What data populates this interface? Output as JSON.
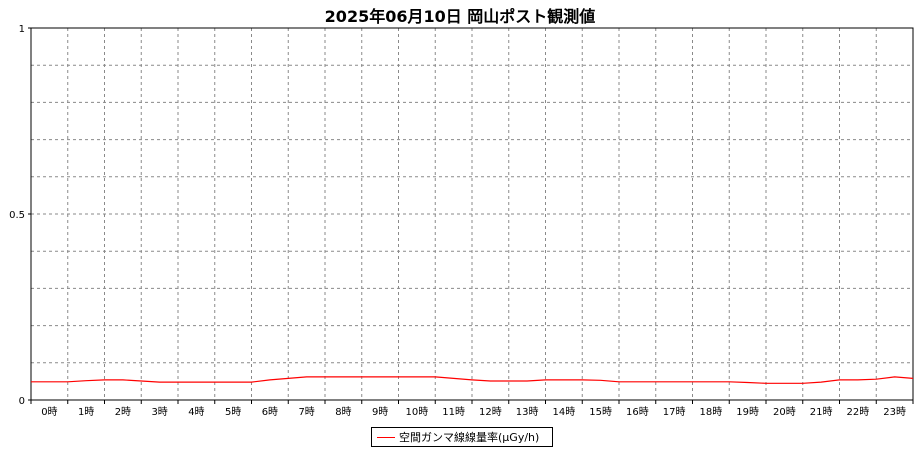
{
  "chart_data": {
    "type": "line",
    "title": "2025年06月10日 岡山ポスト観測値",
    "xlabel": "",
    "ylabel": "",
    "ylim": [
      0,
      1
    ],
    "y_tick_labels": [
      "0",
      "0.5",
      "1"
    ],
    "y_ticks": [
      0,
      0.5,
      1
    ],
    "x_tick_labels": [
      "0時",
      "1時",
      "2時",
      "3時",
      "4時",
      "5時",
      "6時",
      "7時",
      "8時",
      "9時",
      "10時",
      "11時",
      "12時",
      "13時",
      "14時",
      "15時",
      "16時",
      "17時",
      "18時",
      "19時",
      "20時",
      "21時",
      "22時",
      "23時"
    ],
    "grid": true,
    "legend_position": "bottom-center",
    "series": [
      {
        "name": "空間ガンマ線線量率(μGy/h)",
        "color": "#ff0000",
        "x": [
          0,
          0.5,
          1,
          1.5,
          2,
          2.5,
          3,
          3.5,
          4,
          4.5,
          5,
          5.5,
          6,
          6.5,
          7,
          7.5,
          8,
          8.5,
          9,
          9.5,
          10,
          10.5,
          11,
          11.5,
          12,
          12.5,
          13,
          13.5,
          14,
          14.5,
          15,
          15.5,
          16,
          16.5,
          17,
          17.5,
          18,
          18.5,
          19,
          19.5,
          20,
          20.5,
          21,
          21.5,
          22,
          22.5,
          23,
          23.5,
          24
        ],
        "y": [
          0.049,
          0.049,
          0.049,
          0.052,
          0.054,
          0.054,
          0.051,
          0.048,
          0.048,
          0.048,
          0.048,
          0.048,
          0.048,
          0.054,
          0.058,
          0.062,
          0.062,
          0.062,
          0.062,
          0.062,
          0.062,
          0.062,
          0.062,
          0.058,
          0.054,
          0.051,
          0.051,
          0.051,
          0.054,
          0.054,
          0.054,
          0.053,
          0.049,
          0.049,
          0.049,
          0.049,
          0.049,
          0.049,
          0.049,
          0.047,
          0.045,
          0.045,
          0.045,
          0.048,
          0.054,
          0.054,
          0.056,
          0.062,
          0.058
        ]
      }
    ]
  }
}
